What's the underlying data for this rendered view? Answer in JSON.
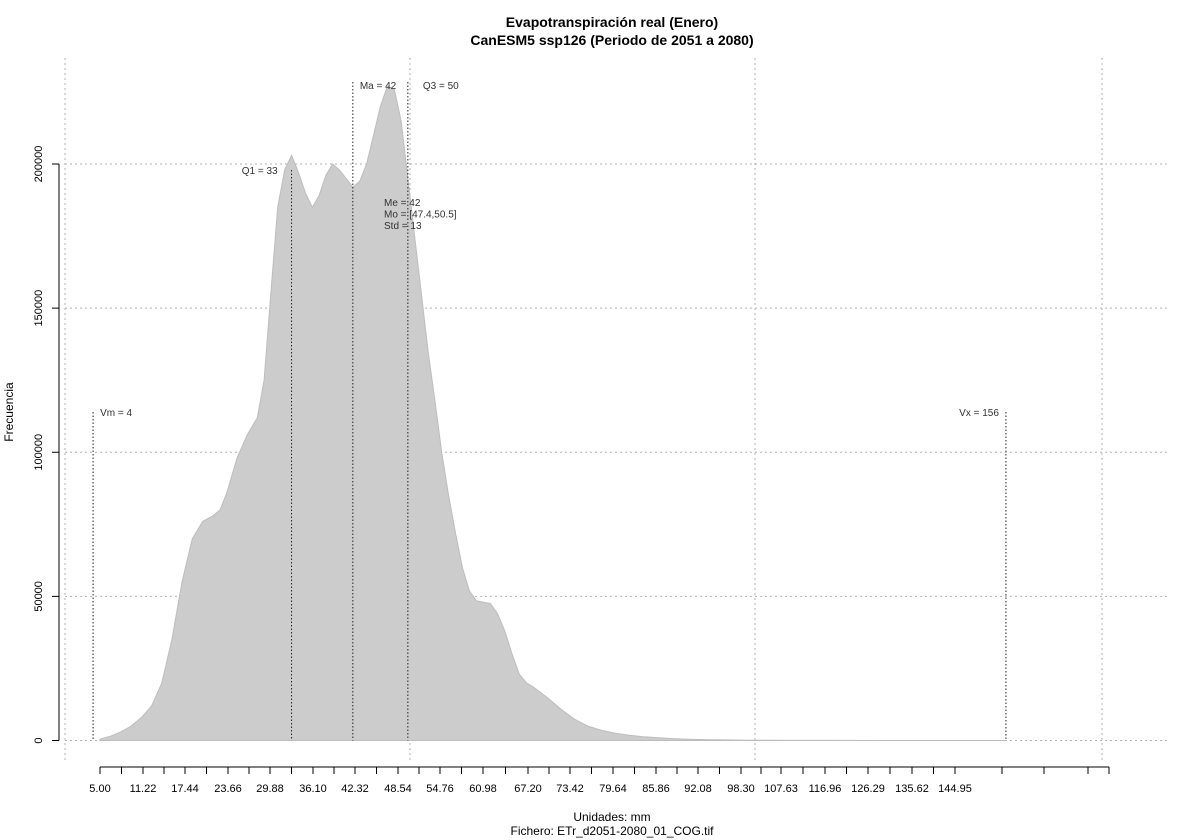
{
  "chart_data": {
    "type": "area",
    "title": "Evapotranspiración real (Enero)",
    "subtitle": "CanESM5 ssp126 (Periodo de 2051 a 2080)",
    "xlabel": "Unidades: mm",
    "ylabel": "Frecuencia",
    "footer": "Fichero: ETr_d2051-2080_01_COG.tif",
    "xlim": [
      4.0,
      156.0
    ],
    "ylim": [
      0,
      225000
    ],
    "x_ticks": [
      "5.00",
      "11.22",
      "17.44",
      "23.66",
      "29.88",
      "36.10",
      "42.32",
      "48.54",
      "54.76",
      "60.98",
      "67.20",
      "73.42",
      "79.64",
      "85.86",
      "92.08",
      "98.30",
      "107.63",
      "116.96",
      "126.29",
      "135.62",
      "144.95"
    ],
    "y_ticks": [
      "0",
      "50000",
      "100000",
      "150000",
      "200000"
    ],
    "grid": true,
    "series": [
      {
        "x": [
          5.0,
          6.5,
          8.0,
          9.5,
          11.0,
          12.5,
          14.0,
          15.5,
          17.0,
          18.5,
          20.0,
          21.5,
          22.5,
          23.5,
          25.0,
          26.5,
          28.0,
          29.0,
          30.0,
          31.0,
          32.0,
          33.0,
          34.0,
          35.0,
          36.0,
          37.0,
          38.0,
          39.0,
          40.0,
          41.0,
          42.0,
          43.0,
          44.0,
          45.0,
          46.0,
          47.0,
          48.0,
          49.0,
          50.0,
          51.0,
          52.0,
          53.0,
          54.0,
          55.0,
          56.0,
          57.0,
          58.0,
          59.0,
          60.0,
          61.0,
          62.0,
          63.0,
          64.0,
          65.0,
          66.0,
          67.0,
          68.0,
          70.0,
          72.0,
          74.0,
          76.0,
          78.0,
          80.0,
          82.0,
          84.0,
          86.0,
          88.0,
          90.0,
          92.0,
          94.0,
          96.0,
          98.0,
          100.0,
          105.0,
          110.0,
          120.0,
          130.0,
          140.0,
          150.0,
          156.0
        ],
        "y": [
          500,
          1500,
          3000,
          5000,
          8000,
          12000,
          20000,
          35000,
          55000,
          70000,
          76000,
          78000,
          80000,
          86000,
          98000,
          106000,
          112000,
          125000,
          155000,
          185000,
          198000,
          203000,
          197000,
          190000,
          185000,
          189000,
          196000,
          200000,
          198000,
          195000,
          192000,
          194000,
          200000,
          210000,
          220000,
          227000,
          226000,
          215000,
          195000,
          175000,
          155000,
          135000,
          118000,
          100000,
          85000,
          72000,
          60000,
          52000,
          48500,
          48000,
          47500,
          44000,
          38000,
          30000,
          23000,
          20000,
          18500,
          15000,
          11000,
          7500,
          5000,
          3500,
          2500,
          1800,
          1300,
          1000,
          700,
          500,
          350,
          250,
          200,
          150,
          100,
          60,
          40,
          20,
          10,
          5,
          2,
          0
        ]
      }
    ],
    "annotations": {
      "vm": "Vm = 4",
      "vx": "Vx = 156",
      "q1": "Q1 = 33",
      "ma": "Ma = 42",
      "q3": "Q3 = 50",
      "me": "Me = 42",
      "mo": "Mo = [47.4,50.5]",
      "std": "Std = 13"
    },
    "markers": {
      "vm": 4,
      "q1": 33,
      "ma": 42,
      "q3": 50,
      "vx": 156
    },
    "colors": {
      "fill": "#cccccc",
      "grid": "#b0b0b0",
      "axis": "#000000"
    }
  }
}
